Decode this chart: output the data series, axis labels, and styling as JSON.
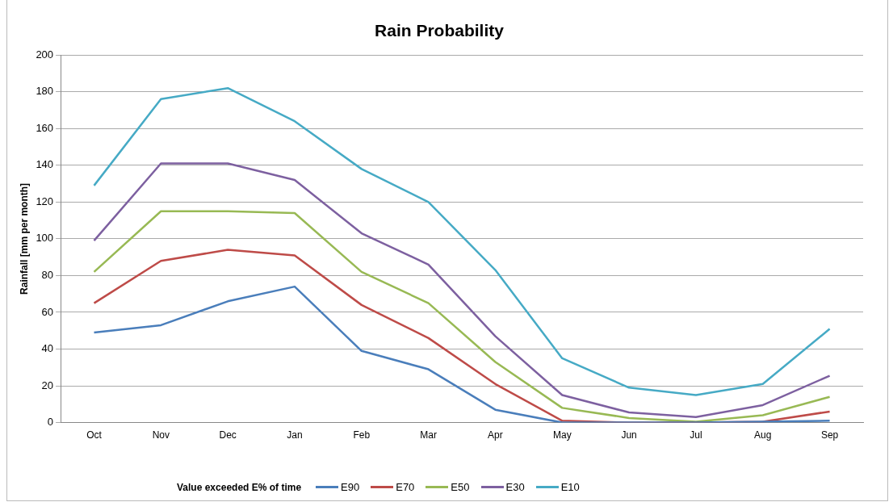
{
  "chart_data": {
    "type": "line",
    "title": "Rain Probability",
    "ylabel": "Rainfall [mm per month]",
    "legend_title": "Value exceeded E% of time",
    "categories": [
      "Oct",
      "Nov",
      "Dec",
      "Jan",
      "Feb",
      "Mar",
      "Apr",
      "May",
      "Jun",
      "Jul",
      "Aug",
      "Sep"
    ],
    "series": [
      {
        "name": "E90",
        "color": "#4a7ebb",
        "values": [
          49,
          53,
          66,
          74,
          39,
          29,
          7,
          0,
          0,
          0,
          0.5,
          1
        ]
      },
      {
        "name": "E70",
        "color": "#be4b48",
        "values": [
          65,
          88,
          94,
          91,
          64,
          46,
          21,
          1,
          0,
          0,
          0.5,
          6
        ]
      },
      {
        "name": "E50",
        "color": "#98b954",
        "values": [
          82,
          115,
          115,
          114,
          82,
          65,
          33,
          8,
          2.5,
          0.5,
          4,
          14
        ]
      },
      {
        "name": "E30",
        "color": "#7d60a0",
        "values": [
          99,
          141,
          141,
          132,
          103,
          86,
          47,
          15,
          5.5,
          3,
          9.5,
          25.5
        ]
      },
      {
        "name": "E10",
        "color": "#46aac5",
        "values": [
          129,
          176,
          182,
          164,
          138,
          120,
          83,
          35,
          19,
          15,
          21,
          51
        ]
      }
    ],
    "ylim": [
      0,
      200
    ],
    "yticks": [
      0,
      20,
      40,
      60,
      80,
      100,
      120,
      140,
      160,
      180,
      200
    ],
    "grid": "y",
    "legend": "bottom",
    "marker": "none",
    "line_style": "solid"
  }
}
